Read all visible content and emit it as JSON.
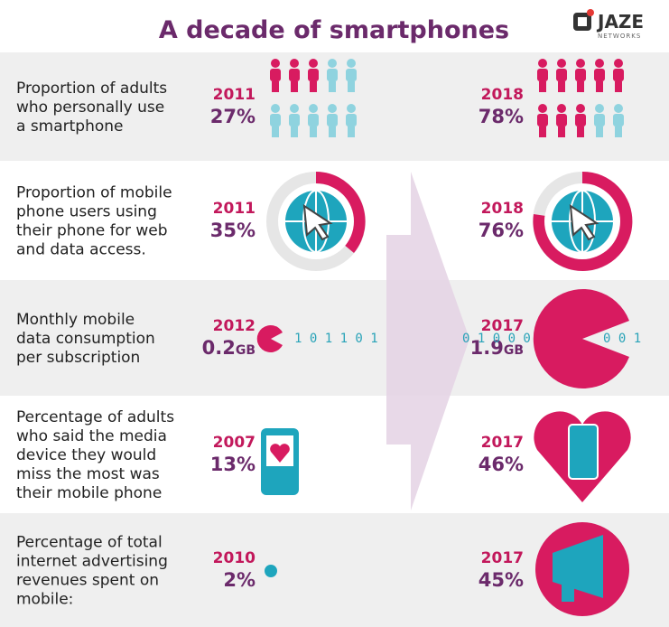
{
  "header": {
    "title": "A decade of smartphones",
    "logo": "JAZE",
    "logo_sub": "NETWORKS"
  },
  "rows": [
    {
      "label": [
        "Proportion of adults",
        "who personally use",
        "a smartphone"
      ],
      "left": {
        "year": "2011",
        "value": "27%"
      },
      "right": {
        "year": "2018",
        "value": "78%"
      }
    },
    {
      "label": [
        "Proportion of mobile",
        "phone users using",
        "their phone for web",
        "and data access."
      ],
      "left": {
        "year": "2011",
        "value": "35%"
      },
      "right": {
        "year": "2018",
        "value": "76%"
      }
    },
    {
      "label": [
        "Monthly mobile",
        "data consumption",
        "per subscription"
      ],
      "left": {
        "year": "2012",
        "value": "0.2",
        "unit": "GB"
      },
      "right": {
        "year": "2017",
        "value": "1.9",
        "unit": "GB"
      },
      "bits": [
        "1 0 1 1 0 1",
        "0 1 0 0 0",
        "0 0 1"
      ]
    },
    {
      "label": [
        "Percentage of adults",
        "who said the media",
        "device they would",
        "miss the most was",
        "their mobile phone"
      ],
      "left": {
        "year": "2007",
        "value": "13%"
      },
      "right": {
        "year": "2017",
        "value": "46%"
      }
    },
    {
      "label": [
        "Percentage of total",
        "internet advertising",
        "revenues spent on",
        "mobile:"
      ],
      "left": {
        "year": "2010",
        "value": "2%"
      },
      "right": {
        "year": "2017",
        "value": "45%"
      }
    }
  ]
}
